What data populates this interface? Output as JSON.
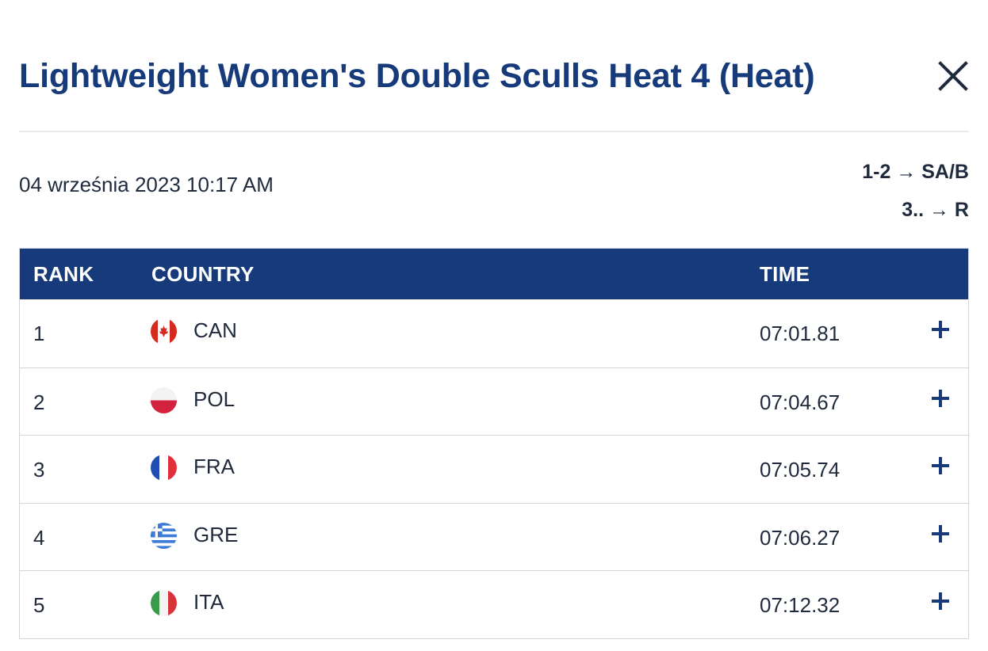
{
  "header": {
    "title": "Lightweight Women's Double Sculls Heat 4 (Heat)",
    "close_icon": "close-icon"
  },
  "event": {
    "date": "04 września 2023 10:17 AM",
    "progression": [
      "1-2 → SA/B",
      "3.. → R"
    ]
  },
  "table": {
    "columns": [
      "RANK",
      "COUNTRY",
      "TIME"
    ],
    "rows": [
      {
        "rank": "1",
        "country": "CAN",
        "flag": "canada-flag-icon",
        "time": "07:01.81"
      },
      {
        "rank": "2",
        "country": "POL",
        "flag": "poland-flag-icon",
        "time": "07:04.67"
      },
      {
        "rank": "3",
        "country": "FRA",
        "flag": "france-flag-icon",
        "time": "07:05.74"
      },
      {
        "rank": "4",
        "country": "GRE",
        "flag": "greece-flag-icon",
        "time": "07:06.27"
      },
      {
        "rank": "5",
        "country": "ITA",
        "flag": "italy-flag-icon",
        "time": "07:12.32"
      }
    ],
    "expand_icon": "plus-icon"
  },
  "colors": {
    "brand": "#163a7a",
    "text": "#1f2a3d",
    "border": "#d2d6de"
  }
}
